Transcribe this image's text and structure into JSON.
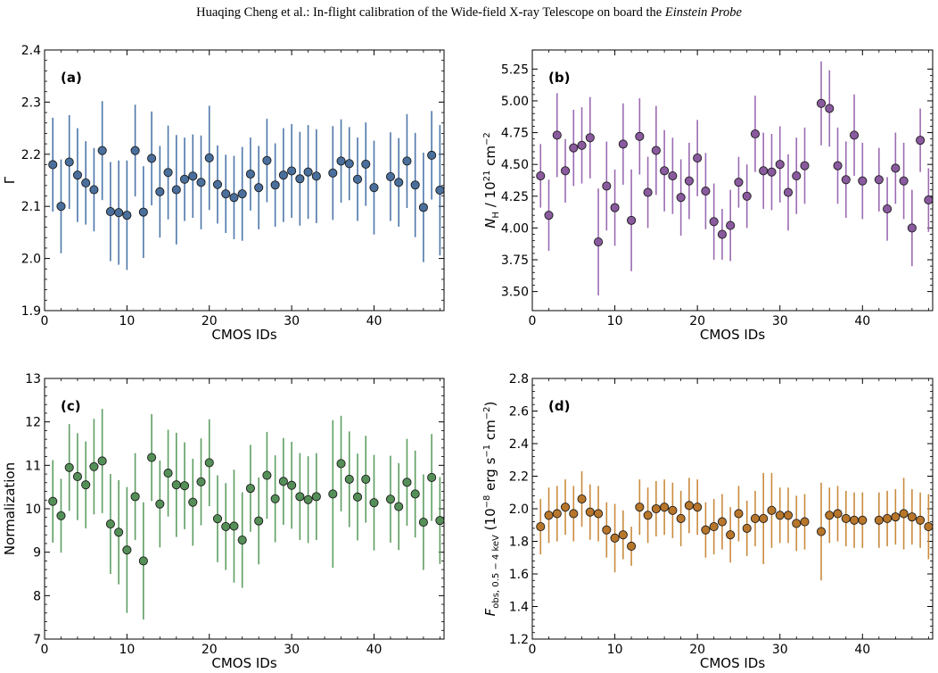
{
  "header": {
    "text_main": "Huaqing Cheng et al.: In-flight calibration of the Wide-field X-ray Telescope on board the ",
    "text_italic": "Einstein Probe"
  },
  "chart_data": [
    {
      "type": "scatter",
      "label": "(a)",
      "xlabel": "CMOS IDs",
      "ylabel": "Γ",
      "xlim": [
        0,
        48.5
      ],
      "ylim": [
        1.9,
        2.4
      ],
      "xticks": [
        0,
        10,
        20,
        30,
        40
      ],
      "yticks": [
        1.9,
        2.0,
        2.1,
        2.2,
        2.3,
        2.4
      ],
      "ytick_labels": [
        "1.9",
        "2.0",
        "2.1",
        "2.2",
        "2.3",
        "2.4"
      ],
      "color": "#4e77aa",
      "marker_color": "#4a6f9c",
      "errorbars": true,
      "x": [
        1,
        2,
        3,
        4,
        5,
        6,
        7,
        8,
        9,
        10,
        11,
        12,
        13,
        14,
        15,
        16,
        17,
        18,
        19,
        20,
        21,
        22,
        23,
        24,
        25,
        26,
        27,
        28,
        29,
        30,
        31,
        32,
        33,
        35,
        36,
        37,
        38,
        39,
        40,
        42,
        43,
        44,
        45,
        46,
        47,
        48
      ],
      "y": [
        2.18,
        2.1,
        2.185,
        2.16,
        2.145,
        2.132,
        2.207,
        2.09,
        2.088,
        2.083,
        2.207,
        2.089,
        2.192,
        2.128,
        2.165,
        2.132,
        2.152,
        2.158,
        2.146,
        2.193,
        2.142,
        2.124,
        2.117,
        2.124,
        2.162,
        2.136,
        2.188,
        2.141,
        2.16,
        2.168,
        2.153,
        2.166,
        2.158,
        2.164,
        2.187,
        2.182,
        2.152,
        2.181,
        2.136,
        2.157,
        2.146,
        2.187,
        2.141,
        2.098,
        2.198,
        2.131
      ],
      "yerr": [
        0.09,
        0.09,
        0.09,
        0.09,
        0.08,
        0.08,
        0.095,
        0.095,
        0.1,
        0.105,
        0.088,
        0.088,
        0.09,
        0.088,
        0.09,
        0.105,
        0.08,
        0.08,
        0.09,
        0.1,
        0.075,
        0.075,
        0.08,
        0.09,
        0.07,
        0.08,
        0.08,
        0.08,
        0.09,
        0.09,
        0.09,
        0.09,
        0.09,
        0.09,
        0.08,
        0.07,
        0.08,
        0.08,
        0.09,
        0.085,
        0.085,
        0.09,
        0.1,
        0.105,
        0.085,
        0.125
      ]
    },
    {
      "type": "scatter",
      "label": "(b)",
      "xlabel": "CMOS IDs",
      "ylabel": "N_H / 10^21 cm^-2",
      "xlim": [
        0,
        48.5
      ],
      "ylim": [
        3.35,
        5.4
      ],
      "xticks": [
        0,
        10,
        20,
        30,
        40
      ],
      "yticks": [
        3.5,
        3.75,
        4.0,
        4.25,
        4.5,
        4.75,
        5.0,
        5.25
      ],
      "ytick_labels": [
        "3.50",
        "3.75",
        "4.00",
        "4.25",
        "4.50",
        "4.75",
        "5.00",
        "5.25"
      ],
      "color": "#9c6bb3",
      "marker_color": "#8a5a9e",
      "errorbars": true,
      "x": [
        1,
        2,
        3,
        4,
        5,
        6,
        7,
        8,
        9,
        10,
        11,
        12,
        13,
        14,
        15,
        16,
        17,
        18,
        19,
        20,
        21,
        22,
        23,
        24,
        25,
        26,
        27,
        28,
        29,
        30,
        31,
        32,
        33,
        35,
        36,
        37,
        38,
        39,
        40,
        42,
        43,
        44,
        45,
        46,
        47,
        48
      ],
      "y": [
        4.41,
        4.1,
        4.73,
        4.45,
        4.63,
        4.65,
        4.71,
        3.89,
        4.33,
        4.16,
        4.66,
        4.06,
        4.72,
        4.28,
        4.61,
        4.45,
        4.41,
        4.24,
        4.37,
        4.55,
        4.29,
        4.05,
        3.95,
        4.02,
        4.36,
        4.25,
        4.74,
        4.45,
        4.44,
        4.5,
        4.28,
        4.41,
        4.49,
        4.98,
        4.94,
        4.49,
        4.38,
        4.73,
        4.37,
        4.38,
        4.15,
        4.47,
        4.37,
        4.0,
        4.69,
        4.22
      ],
      "yerr": [
        0.25,
        0.28,
        0.33,
        0.25,
        0.3,
        0.3,
        0.32,
        0.42,
        0.35,
        0.3,
        0.32,
        0.4,
        0.3,
        0.28,
        0.35,
        0.32,
        0.3,
        0.3,
        0.3,
        0.3,
        0.3,
        0.3,
        0.2,
        0.28,
        0.2,
        0.25,
        0.3,
        0.3,
        0.3,
        0.3,
        0.3,
        0.3,
        0.3,
        0.33,
        0.3,
        0.3,
        0.3,
        0.32,
        0.3,
        0.25,
        0.25,
        0.28,
        0.3,
        0.3,
        0.25,
        0.25
      ]
    },
    {
      "type": "scatter",
      "label": "(c)",
      "xlabel": "CMOS IDs",
      "ylabel": "Normalization",
      "xlim": [
        0,
        48.5
      ],
      "ylim": [
        7,
        13
      ],
      "xticks": [
        0,
        10,
        20,
        30,
        40
      ],
      "yticks": [
        7,
        8,
        9,
        10,
        11,
        12,
        13
      ],
      "ytick_labels": [
        "7",
        "8",
        "9",
        "10",
        "11",
        "12",
        "13"
      ],
      "color": "#5f9e62",
      "marker_color": "#558f58",
      "errorbars": true,
      "x": [
        1,
        2,
        3,
        4,
        5,
        6,
        7,
        8,
        9,
        10,
        11,
        12,
        13,
        14,
        15,
        16,
        17,
        18,
        19,
        20,
        21,
        22,
        23,
        24,
        25,
        26,
        27,
        28,
        29,
        30,
        31,
        32,
        33,
        35,
        36,
        37,
        38,
        39,
        40,
        42,
        43,
        44,
        45,
        46,
        47,
        48
      ],
      "y": [
        10.17,
        9.84,
        10.95,
        10.74,
        10.55,
        10.97,
        11.1,
        9.65,
        9.46,
        9.05,
        10.28,
        8.8,
        11.18,
        10.11,
        10.82,
        10.55,
        10.53,
        10.15,
        10.62,
        11.06,
        9.77,
        9.59,
        9.6,
        9.28,
        10.47,
        9.72,
        10.77,
        10.23,
        10.63,
        10.54,
        10.28,
        10.21,
        10.28,
        10.34,
        11.04,
        10.68,
        10.27,
        10.68,
        10.14,
        10.22,
        10.05,
        10.61,
        10.34,
        9.69,
        10.72,
        9.73
      ],
      "yerr": [
        0.95,
        0.85,
        1.0,
        1.0,
        1.0,
        1.1,
        1.2,
        1.15,
        1.2,
        1.45,
        1.0,
        1.35,
        1.0,
        1.0,
        1.0,
        1.2,
        1.0,
        1.0,
        1.0,
        1.0,
        1.0,
        1.0,
        1.3,
        1.1,
        1.0,
        1.0,
        1.0,
        1.0,
        1.0,
        1.0,
        1.0,
        1.0,
        1.0,
        1.7,
        1.1,
        1.1,
        1.0,
        1.0,
        1.1,
        1.0,
        1.0,
        1.0,
        1.0,
        1.1,
        1.0,
        1.0
      ]
    },
    {
      "type": "scatter",
      "label": "(d)",
      "xlabel": "CMOS IDs",
      "ylabel": "F_obs, 0.5-4 keV (10^-8 erg s^-1 cm^-2)",
      "xlim": [
        0,
        48.5
      ],
      "ylim": [
        1.2,
        2.8
      ],
      "xticks": [
        0,
        10,
        20,
        30,
        40
      ],
      "yticks": [
        1.2,
        1.4,
        1.6,
        1.8,
        2.0,
        2.2,
        2.4,
        2.6,
        2.8
      ],
      "ytick_labels": [
        "1.2",
        "1.4",
        "1.6",
        "1.8",
        "2.0",
        "2.2",
        "2.4",
        "2.6",
        "2.8"
      ],
      "color": "#c98b3e",
      "marker_color": "#b8762b",
      "errorbars": true,
      "x": [
        1,
        2,
        3,
        4,
        5,
        6,
        7,
        8,
        9,
        10,
        11,
        12,
        13,
        14,
        15,
        16,
        17,
        18,
        19,
        20,
        21,
        22,
        23,
        24,
        25,
        26,
        27,
        28,
        29,
        30,
        31,
        32,
        33,
        35,
        36,
        37,
        38,
        39,
        40,
        42,
        43,
        44,
        45,
        46,
        47,
        48
      ],
      "y": [
        1.89,
        1.96,
        1.97,
        2.01,
        1.97,
        2.06,
        1.98,
        1.97,
        1.87,
        1.82,
        1.84,
        1.77,
        2.01,
        1.96,
        2.0,
        2.01,
        1.99,
        1.94,
        2.02,
        2.01,
        1.87,
        1.89,
        1.92,
        1.84,
        1.97,
        1.88,
        1.94,
        1.94,
        1.99,
        1.96,
        1.96,
        1.91,
        1.92,
        1.86,
        1.96,
        1.97,
        1.94,
        1.93,
        1.93,
        1.93,
        1.94,
        1.95,
        1.97,
        1.95,
        1.93,
        1.89
      ],
      "yerr": [
        0.17,
        0.17,
        0.17,
        0.17,
        0.17,
        0.17,
        0.17,
        0.17,
        0.17,
        0.21,
        0.15,
        0.12,
        0.17,
        0.17,
        0.17,
        0.17,
        0.17,
        0.17,
        0.17,
        0.17,
        0.17,
        0.17,
        0.17,
        0.17,
        0.17,
        0.17,
        0.17,
        0.28,
        0.23,
        0.17,
        0.17,
        0.17,
        0.17,
        0.3,
        0.17,
        0.17,
        0.17,
        0.17,
        0.17,
        0.17,
        0.17,
        0.17,
        0.22,
        0.17,
        0.17,
        0.2
      ]
    }
  ]
}
